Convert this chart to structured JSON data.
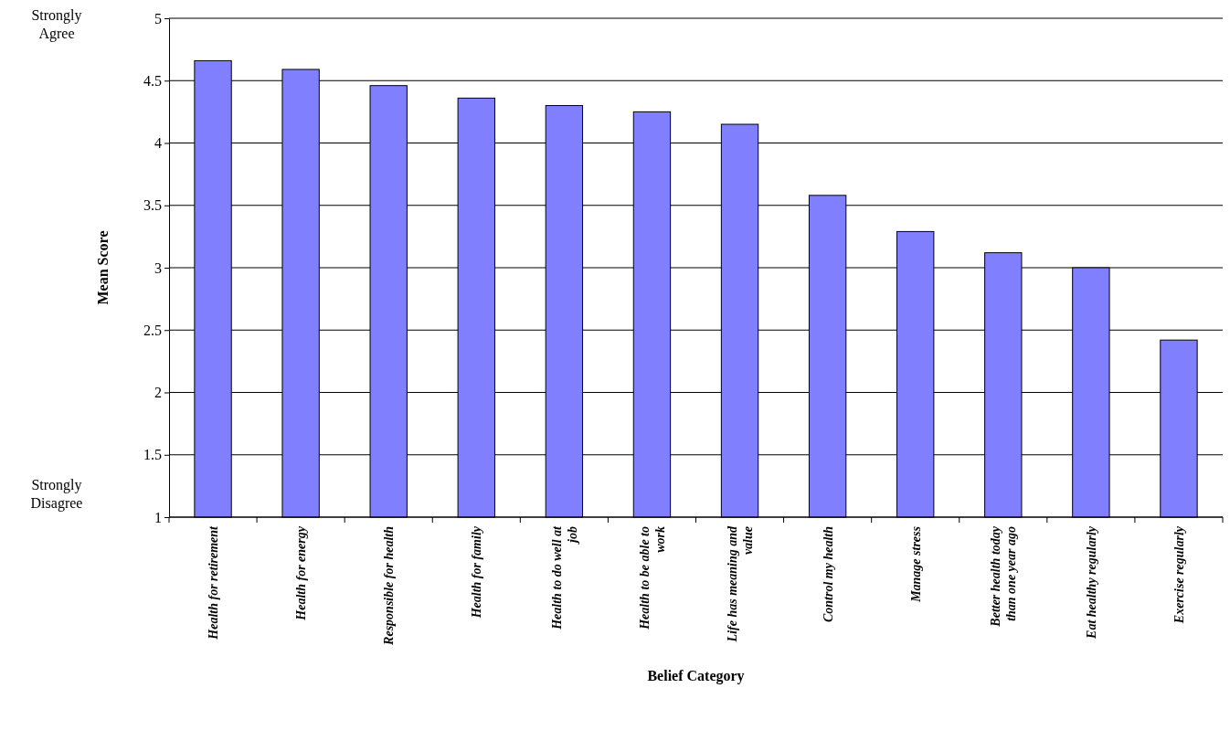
{
  "chart_data": {
    "type": "bar",
    "xlabel": "Belief Category",
    "ylabel": "Mean Score",
    "categories": [
      "Health for retirement",
      "Health for energy",
      "Responsible for health",
      "Health for family",
      "Health to do well at job",
      "Health to be able to work",
      "Life has meaning and value",
      "Control my health",
      "Manage stress",
      "Better health today than one year ago",
      "Eat healthy regularly",
      "Exercise regularly"
    ],
    "values": [
      4.66,
      4.59,
      4.46,
      4.36,
      4.3,
      4.25,
      4.15,
      3.58,
      3.29,
      3.12,
      3.0,
      2.42
    ],
    "color": "#8080ff",
    "ylim": [
      1,
      5
    ],
    "yticks": [
      1,
      1.5,
      2,
      2.5,
      3,
      3.5,
      4,
      4.5,
      5
    ],
    "grid": "y",
    "annotations": [
      "Strongly Agree",
      "Strongly Disagree"
    ]
  }
}
